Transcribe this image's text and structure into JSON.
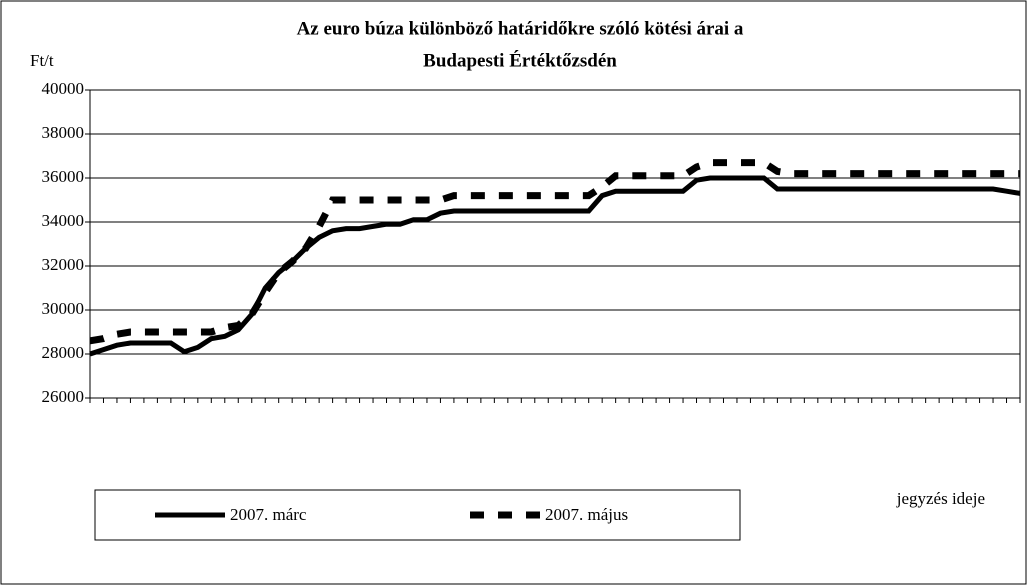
{
  "chart_data": {
    "type": "line",
    "title": [
      "Az euro búza különböző határidőkre szóló kötési árai a",
      "Budapesti Értéktőzsdén"
    ],
    "y_label": "Ft/t",
    "x_label": "jegyzés ideje",
    "categories": [
      null,
      null,
      null,
      null,
      null,
      null,
      null,
      null,
      null,
      null,
      null,
      null,
      null,
      null,
      null,
      null,
      null,
      null,
      null,
      null,
      null,
      null,
      null,
      null,
      null,
      null,
      null,
      null,
      null,
      null,
      null,
      null,
      null,
      null,
      null,
      null,
      null,
      null,
      null,
      null,
      null,
      null,
      null,
      null,
      null,
      null,
      null,
      null,
      null,
      null,
      null,
      null,
      null,
      null,
      null,
      null,
      null,
      null,
      null,
      null,
      null,
      null,
      null,
      null,
      null,
      null,
      null,
      null,
      null,
      null
    ],
    "series": [
      {
        "name": "2007. márc",
        "color": "#000000",
        "style": "solid",
        "values": [
          28000,
          28200,
          28400,
          28500,
          28500,
          28500,
          28500,
          28100,
          28300,
          28700,
          28800,
          29100,
          29800,
          31000,
          31700,
          32200,
          32800,
          33300,
          33600,
          33700,
          33700,
          33800,
          33900,
          33900,
          34100,
          34100,
          34400,
          34500,
          34500,
          34500,
          34500,
          34500,
          34500,
          34500,
          34500,
          34500,
          34500,
          34500,
          35200,
          35400,
          35400,
          35400,
          35400,
          35400,
          35400,
          35900,
          36000,
          36000,
          36000,
          36000,
          36000,
          35500,
          35500,
          35500,
          35500,
          35500,
          35500,
          35500,
          35500,
          35500,
          35500,
          35500,
          35500,
          35500,
          35500,
          35500,
          35500,
          35500,
          35400,
          35300
        ]
      },
      {
        "name": "2007. május",
        "color": "#000000",
        "style": "dashed",
        "values": [
          28600,
          28700,
          28900,
          29000,
          29000,
          29000,
          29000,
          29000,
          29000,
          29000,
          29200,
          29300,
          29800,
          30800,
          31700,
          32200,
          32800,
          33800,
          35000,
          35000,
          35000,
          35000,
          35000,
          35000,
          35000,
          35000,
          35000,
          35200,
          35200,
          35200,
          35200,
          35200,
          35200,
          35200,
          35200,
          35200,
          35200,
          35200,
          35600,
          36100,
          36100,
          36100,
          36100,
          36100,
          36100,
          36500,
          36700,
          36700,
          36700,
          36700,
          36700,
          36300,
          36200,
          36200,
          36200,
          36200,
          36200,
          36200,
          36200,
          36200,
          36200,
          36200,
          36200,
          36200,
          36200,
          36200,
          36200,
          36200,
          36200,
          36200
        ]
      }
    ],
    "ylim": [
      26000,
      40000
    ],
    "yticks": [
      26000,
      28000,
      30000,
      32000,
      34000,
      36000,
      38000,
      40000
    ],
    "grid": true
  }
}
